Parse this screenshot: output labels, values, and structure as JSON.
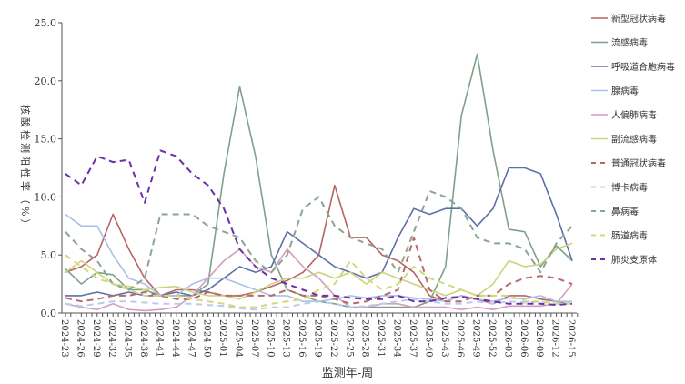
{
  "chart_data": {
    "type": "line",
    "title": "",
    "xlabel": "监测年-周",
    "ylabel": "核酸检测阳性率（%）",
    "ylim": [
      0,
      25
    ],
    "yticks": [
      "0.0",
      "5.0",
      "10.0",
      "15.0",
      "20.0",
      "25.0"
    ],
    "grid": false,
    "legend_position": "right",
    "categories": [
      "2024-23",
      "2024-26",
      "2024-29",
      "2024-32",
      "2024-35",
      "2024-38",
      "2024-41",
      "2024-44",
      "2024-47",
      "2024-50",
      "2025-01",
      "2025-04",
      "2025-07",
      "2025-10",
      "2025-13",
      "2025-16",
      "2025-19",
      "2025-22",
      "2025-25",
      "2025-28",
      "2025-31",
      "2025-34",
      "2025-37",
      "2025-40",
      "2025-43",
      "2025-46",
      "2025-49",
      "2025-52",
      "2026-03",
      "2026-06",
      "2026-09",
      "2026-12",
      "2026-15"
    ],
    "series": [
      {
        "name": "新型冠状病毒",
        "color": "#b86464",
        "dash": false,
        "values": [
          3.5,
          4,
          5,
          8.5,
          5.5,
          3,
          1.5,
          2,
          2,
          1.8,
          1.5,
          1.5,
          1.8,
          2.3,
          2.8,
          3.5,
          5,
          11,
          6.5,
          6.5,
          5,
          4.5,
          3.5,
          1.5,
          1,
          1.5,
          1.2,
          0.8,
          1.5,
          1.5,
          1.2,
          1.0,
          0.8
        ]
      },
      {
        "name": "流感病毒",
        "color": "#7fa189",
        "dash": false,
        "values": [
          3.8,
          2.5,
          3.5,
          3.3,
          2,
          2,
          1.5,
          1.5,
          1.5,
          2.5,
          12,
          19.5,
          13.5,
          5,
          2,
          1.5,
          1,
          0.8,
          0.5,
          0.5,
          0.5,
          0.5,
          0.5,
          1,
          4,
          17,
          22.3,
          14,
          7.2,
          7,
          4,
          5.8,
          4.5
        ]
      },
      {
        "name": "呼吸道合胞病毒",
        "color": "#5c70a8",
        "dash": false,
        "values": [
          1.5,
          1.5,
          1.8,
          1.5,
          1.8,
          1.5,
          1.5,
          1.8,
          1.5,
          2,
          3,
          4,
          3.5,
          4.0,
          7,
          6,
          5,
          4,
          3.5,
          3,
          3.5,
          6.5,
          9,
          8.5,
          9,
          9,
          7.5,
          9,
          12.5,
          12.5,
          12,
          8.5,
          4.5
        ]
      },
      {
        "name": "腺病毒",
        "color": "#a9c1e4",
        "dash": false,
        "values": [
          8.5,
          7.5,
          7.5,
          5,
          3,
          2.5,
          1.5,
          1.5,
          2.5,
          3.0,
          3.0,
          2.5,
          2.0,
          1.5,
          1.5,
          1.0,
          1.0,
          1.2,
          1.5,
          1.3,
          1.5,
          1.5,
          1.3,
          1.2,
          1.0,
          1.5,
          1.2,
          1.0,
          1.3,
          1.2,
          1.5,
          1.0,
          1.0
        ]
      },
      {
        "name": "人偏肺病毒",
        "color": "#d59cc2",
        "dash": false,
        "values": [
          0.8,
          0.5,
          0.3,
          0.8,
          0.3,
          0.2,
          0.3,
          0.5,
          1.5,
          3,
          4.5,
          5.5,
          4,
          3.5,
          5.5,
          4,
          3,
          1.5,
          0.5,
          0.5,
          0.8,
          0.8,
          0.5,
          0.5,
          0.5,
          0.3,
          0.5,
          0.3,
          0.6,
          0.6,
          0.6,
          0.8,
          2.5
        ]
      },
      {
        "name": "副流感病毒",
        "color": "#c9d47c",
        "dash": false,
        "values": [
          3.5,
          4.5,
          3.5,
          2.5,
          2.3,
          2,
          2.2,
          2.3,
          1.8,
          1.5,
          1.5,
          1.2,
          1.8,
          2.5,
          3,
          3,
          3.5,
          3,
          3.5,
          2.5,
          3.5,
          3,
          2.5,
          2,
          1.5,
          2,
          1.5,
          2.5,
          4.5,
          4,
          4.2,
          5.5,
          6
        ]
      },
      {
        "name": "普通冠状病毒",
        "color": "#b86a6a",
        "dash": true,
        "values": [
          1.3,
          1.0,
          1.2,
          1.5,
          1.5,
          1.8,
          1.5,
          1.2,
          1.2,
          1.8,
          1.5,
          1.5,
          1.5,
          1.5,
          2,
          1.5,
          1.5,
          1.2,
          0.8,
          1,
          1.5,
          2,
          6.5,
          2,
          1,
          1,
          1.5,
          1.5,
          2.5,
          3,
          3.2,
          3,
          2.5
        ]
      },
      {
        "name": "博卡病毒",
        "color": "#b9cde9",
        "dash": true,
        "values": [
          0.8,
          0.6,
          0.8,
          1.0,
          1.0,
          0.9,
          0.8,
          0.8,
          0.8,
          0.7,
          0.6,
          0.4,
          0.3,
          0.5,
          0.5,
          0.8,
          1.0,
          0.8,
          0.5,
          0.6,
          0.8,
          1.0,
          1.2,
          1.0,
          0.8,
          0.8,
          1.0,
          0.8,
          1.0,
          0.9,
          1.0,
          0.8,
          1.0
        ]
      },
      {
        "name": "鼻病毒",
        "color": "#8aa692",
        "dash": true,
        "values": [
          7,
          5.5,
          4.5,
          2.5,
          2,
          3,
          8.5,
          8.5,
          8.5,
          7.5,
          7,
          6.5,
          4.5,
          3.5,
          5,
          9,
          10,
          7.5,
          6.5,
          6,
          5.5,
          3.5,
          7,
          10.5,
          10,
          9,
          6.5,
          6,
          6,
          5.5,
          3.5,
          6,
          7.5
        ]
      },
      {
        "name": "肠道病毒",
        "color": "#d4d77c",
        "dash": true,
        "values": [
          5,
          4,
          3,
          2.5,
          2,
          1.5,
          1.5,
          1.5,
          1.2,
          1,
          0.8,
          0.5,
          0.5,
          0.8,
          1,
          1.2,
          2,
          2.5,
          4.5,
          3,
          2,
          2.5,
          4,
          3,
          2.5,
          2,
          1.5,
          1.5,
          1.5,
          1,
          1,
          0.8,
          0.8
        ]
      },
      {
        "name": "肺炎支原体",
        "color": "#6a30a8",
        "dash": true,
        "values": [
          12,
          11,
          13.5,
          13,
          13.2,
          9.5,
          14,
          13.5,
          12,
          11,
          9,
          5.5,
          4,
          3,
          2.5,
          2,
          1.5,
          1.5,
          1.3,
          1.2,
          1.2,
          1.5,
          1,
          1,
          1.3,
          1.4,
          1.2,
          1.0,
          0.8,
          0.8,
          0.8,
          0.7,
          0.8
        ]
      }
    ]
  }
}
